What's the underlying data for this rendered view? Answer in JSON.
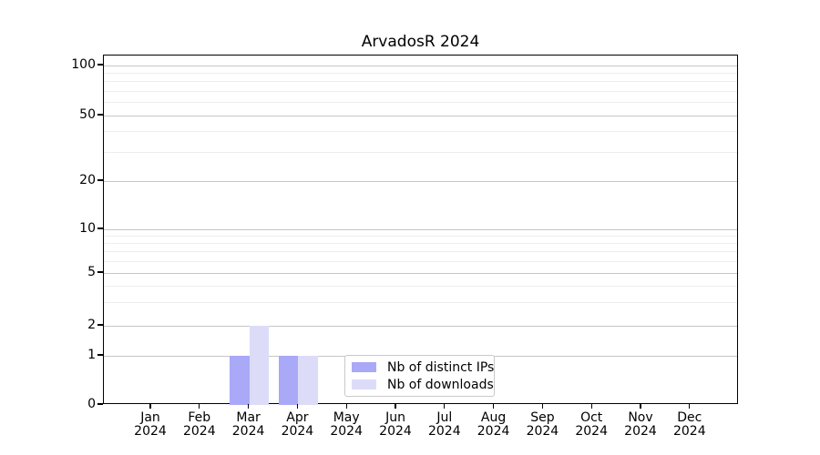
{
  "chart_data": {
    "type": "bar",
    "title": "ArvadosR 2024",
    "categories": [
      "Jan",
      "Feb",
      "Mar",
      "Apr",
      "May",
      "Jun",
      "Jul",
      "Aug",
      "Sep",
      "Oct",
      "Nov",
      "Dec"
    ],
    "year_label": "2024",
    "series": [
      {
        "name": "Nb of distinct IPs",
        "color": "#a9a9f8",
        "values": [
          0,
          0,
          1,
          1,
          0,
          0,
          0,
          0,
          0,
          0,
          0,
          0
        ]
      },
      {
        "name": "Nb of downloads",
        "color": "#dcdcf9",
        "values": [
          0,
          0,
          2,
          1,
          0,
          0,
          0,
          0,
          0,
          0,
          0,
          0
        ]
      }
    ],
    "yaxis": {
      "scale": "symlog",
      "major_ticks": [
        0,
        1,
        2,
        5,
        10,
        20,
        50,
        100
      ],
      "minor_ticks": [
        3,
        4,
        6,
        7,
        8,
        9,
        30,
        40,
        60,
        70,
        80,
        90
      ],
      "ylim": [
        0,
        115
      ]
    },
    "xlabel": "",
    "ylabel": "",
    "grid": "on",
    "legend_position": "lower-center"
  }
}
